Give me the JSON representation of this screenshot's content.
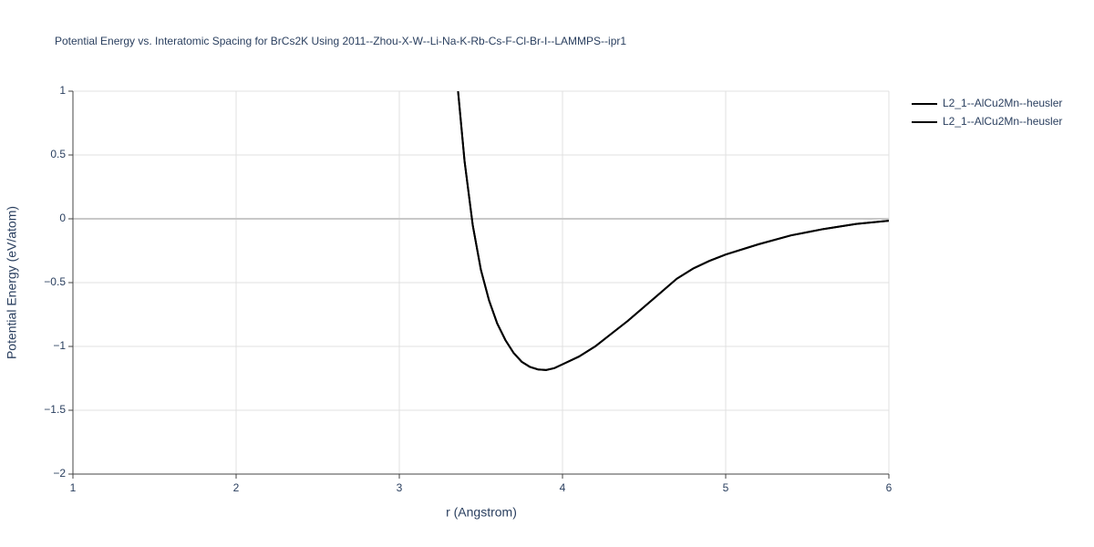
{
  "chart_data": {
    "type": "line",
    "title": "Potential Energy vs. Interatomic Spacing for BrCs2K Using 2011--Zhou-X-W--Li-Na-K-Rb-Cs-F-Cl-Br-I--LAMMPS--ipr1",
    "x_label": "r (Angstrom)",
    "y_label": "Potential Energy (eV/atom)",
    "xlim": [
      1,
      6
    ],
    "ylim": [
      -2,
      1
    ],
    "xticks": [
      1,
      2,
      3,
      4,
      5,
      6
    ],
    "yticks": [
      {
        "value": -2,
        "label": "−2"
      },
      {
        "value": -1.5,
        "label": "−1.5"
      },
      {
        "value": -1,
        "label": "−1"
      },
      {
        "value": -0.5,
        "label": "−0.5"
      },
      0,
      0.5,
      1
    ],
    "grid": true,
    "legend": "right",
    "x": [
      3.36,
      3.4,
      3.45,
      3.5,
      3.55,
      3.6,
      3.65,
      3.7,
      3.75,
      3.8,
      3.85,
      3.9,
      3.95,
      4.0,
      4.1,
      4.2,
      4.3,
      4.4,
      4.5,
      4.6,
      4.7,
      4.8,
      4.9,
      5.0,
      5.2,
      5.4,
      5.6,
      5.8,
      6.0
    ],
    "series": [
      {
        "name": "L2_1--AlCu2Mn--heusler",
        "color": "#000000",
        "values": [
          1.0,
          0.45,
          -0.05,
          -0.4,
          -0.64,
          -0.82,
          -0.95,
          -1.05,
          -1.12,
          -1.16,
          -1.18,
          -1.185,
          -1.17,
          -1.14,
          -1.08,
          -1.0,
          -0.9,
          -0.8,
          -0.69,
          -0.58,
          -0.47,
          -0.39,
          -0.33,
          -0.28,
          -0.2,
          -0.13,
          -0.08,
          -0.04,
          -0.015
        ]
      },
      {
        "name": "L2_1--AlCu2Mn--heusler",
        "color": "#000000",
        "values": [
          1.0,
          0.45,
          -0.05,
          -0.4,
          -0.64,
          -0.82,
          -0.95,
          -1.05,
          -1.12,
          -1.16,
          -1.18,
          -1.185,
          -1.17,
          -1.14,
          -1.08,
          -1.0,
          -0.9,
          -0.8,
          -0.69,
          -0.58,
          -0.47,
          -0.39,
          -0.33,
          -0.28,
          -0.2,
          -0.13,
          -0.08,
          -0.04,
          -0.015
        ]
      }
    ]
  }
}
